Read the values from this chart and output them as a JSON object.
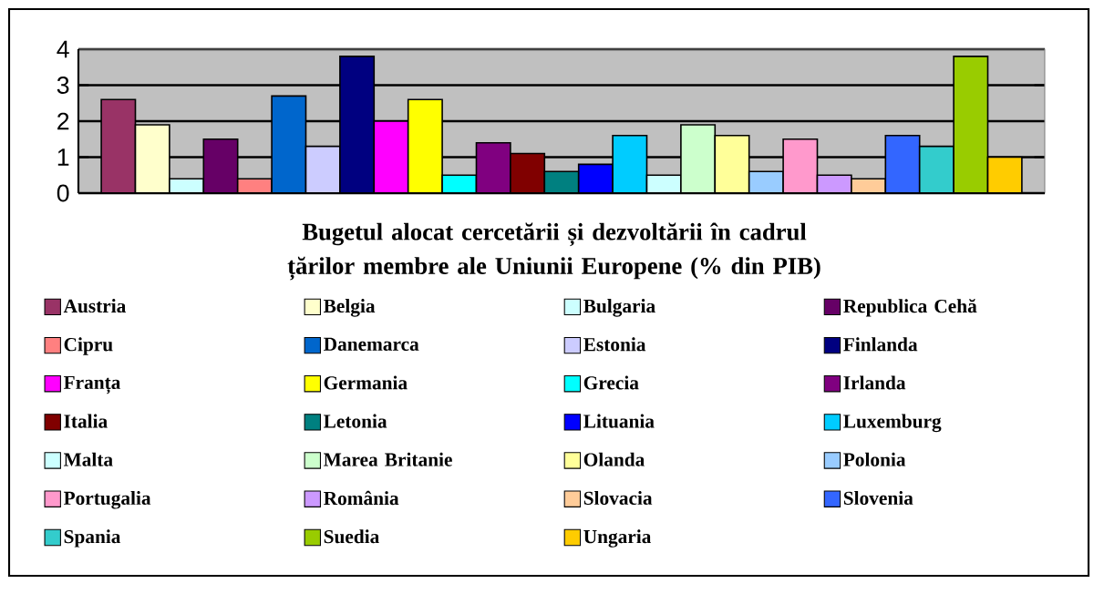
{
  "chart_data": {
    "type": "bar",
    "title": "Bugetul alocat cercetării și dezvoltării în cadrul țărilor membre ale Uniunii Europene (% din PIB)",
    "categories": [
      null
    ],
    "ylim": [
      0,
      4
    ],
    "yticks": [
      0,
      1,
      2,
      3,
      4
    ],
    "grid": "y",
    "legend": "bottom",
    "tick_labels": "y",
    "series": [
      {
        "name": "Austria",
        "color": "#993366",
        "values": [
          2.6
        ]
      },
      {
        "name": "Belgia",
        "color": "#ffffcc",
        "values": [
          1.9
        ]
      },
      {
        "name": "Bulgaria",
        "color": "#ccffff",
        "values": [
          0.4
        ]
      },
      {
        "name": "Republica Cehă",
        "color": "#660066",
        "values": [
          1.5
        ]
      },
      {
        "name": "Cipru",
        "color": "#ff8080",
        "values": [
          0.4
        ]
      },
      {
        "name": "Danemarca",
        "color": "#0066cc",
        "values": [
          2.7
        ]
      },
      {
        "name": "Estonia",
        "color": "#ccccff",
        "values": [
          1.3
        ]
      },
      {
        "name": "Finlanda",
        "color": "#000080",
        "values": [
          3.8
        ]
      },
      {
        "name": "Franța",
        "color": "#ff00ff",
        "values": [
          2.0
        ]
      },
      {
        "name": "Germania",
        "color": "#ffff00",
        "values": [
          2.6
        ]
      },
      {
        "name": "Grecia",
        "color": "#00ffff",
        "values": [
          0.5
        ]
      },
      {
        "name": "Irlanda",
        "color": "#800080",
        "values": [
          1.4
        ]
      },
      {
        "name": "Italia",
        "color": "#800000",
        "values": [
          1.1
        ]
      },
      {
        "name": "Letonia",
        "color": "#008080",
        "values": [
          0.6
        ]
      },
      {
        "name": "Lituania",
        "color": "#0000ff",
        "values": [
          0.8
        ]
      },
      {
        "name": "Luxemburg",
        "color": "#00ccff",
        "values": [
          1.6
        ]
      },
      {
        "name": "Malta",
        "color": "#ccffff",
        "values": [
          0.5
        ]
      },
      {
        "name": "Marea Britanie",
        "color": "#ccffcc",
        "values": [
          1.9
        ]
      },
      {
        "name": "Olanda",
        "color": "#ffff99",
        "values": [
          1.6
        ]
      },
      {
        "name": "Polonia",
        "color": "#99ccff",
        "values": [
          0.6
        ]
      },
      {
        "name": "Portugalia",
        "color": "#ff99cc",
        "values": [
          1.5
        ]
      },
      {
        "name": "România",
        "color": "#cc99ff",
        "values": [
          0.5
        ]
      },
      {
        "name": "Slovacia",
        "color": "#ffcc99",
        "values": [
          0.4
        ]
      },
      {
        "name": "Slovenia",
        "color": "#3366ff",
        "values": [
          1.6
        ]
      },
      {
        "name": "Spania",
        "color": "#33cccc",
        "values": [
          1.3
        ]
      },
      {
        "name": "Suedia",
        "color": "#99cc00",
        "values": [
          3.8
        ]
      },
      {
        "name": "Ungaria",
        "color": "#ffcc00",
        "values": [
          1.0
        ]
      }
    ]
  }
}
